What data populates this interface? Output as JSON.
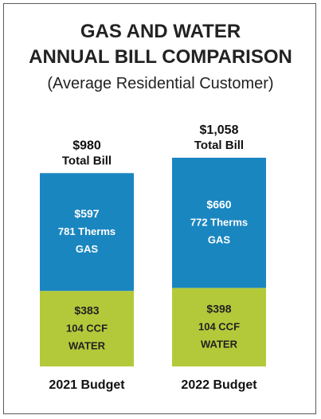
{
  "chart_data": {
    "type": "bar",
    "stacked": true,
    "title": "GAS AND WATER\nANNUAL BILL COMPARISON",
    "title_lines": [
      "GAS AND WATER",
      "ANNUAL BILL COMPARISON"
    ],
    "subtitle": "(Average Residential Customer)",
    "categories": [
      "2021 Budget",
      "2022 Budget"
    ],
    "totals": [
      {
        "value_label": "$980",
        "label": "Total Bill"
      },
      {
        "value_label": "$1,058",
        "label": "Total Bill"
      }
    ],
    "series": [
      {
        "name": "WATER",
        "color": "#b4c93a",
        "values": [
          383,
          398
        ],
        "value_labels": [
          "$383",
          "$398"
        ],
        "detail_labels": [
          "104 CCF",
          "104 CCF"
        ]
      },
      {
        "name": "GAS",
        "color": "#1a86c0",
        "values": [
          597,
          660
        ],
        "value_labels": [
          "$597",
          "$660"
        ],
        "detail_labels": [
          "781 Therms",
          "772 Therms"
        ]
      }
    ],
    "ylim": [
      0,
      1058
    ],
    "grid": false,
    "legend": "none"
  }
}
